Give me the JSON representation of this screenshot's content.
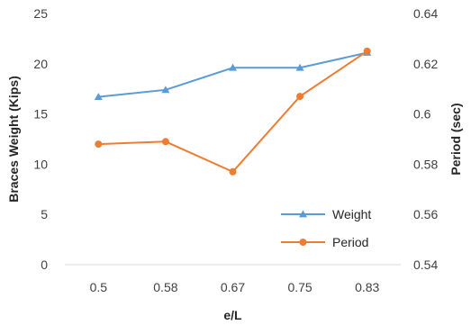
{
  "chart_data": {
    "type": "line",
    "categories": [
      "0.5",
      "0.58",
      "0.67",
      "0.75",
      "0.83"
    ],
    "xlabel": "e/L",
    "ylabel_left": "Braces Weight (Kips)",
    "ylabel_right": "Period (sec)",
    "y_left": {
      "min": 0,
      "max": 25,
      "ticks": [
        "0",
        "5",
        "10",
        "15",
        "20",
        "25"
      ]
    },
    "y_right": {
      "min": 0.54,
      "max": 0.64,
      "ticks": [
        "0.54",
        "0.56",
        "0.58",
        "0.6",
        "0.62",
        "0.64"
      ]
    },
    "grid": false,
    "legend_position": "bottom-right",
    "series": [
      {
        "name": "Weight",
        "axis": "left",
        "marker": "triangle",
        "color": "#5B9BD5",
        "values": [
          16.7,
          17.4,
          19.6,
          19.6,
          21.1
        ]
      },
      {
        "name": "Period",
        "axis": "right",
        "marker": "circle",
        "color": "#ED7D31",
        "values": [
          0.588,
          0.589,
          0.577,
          0.607,
          0.625
        ]
      }
    ]
  }
}
